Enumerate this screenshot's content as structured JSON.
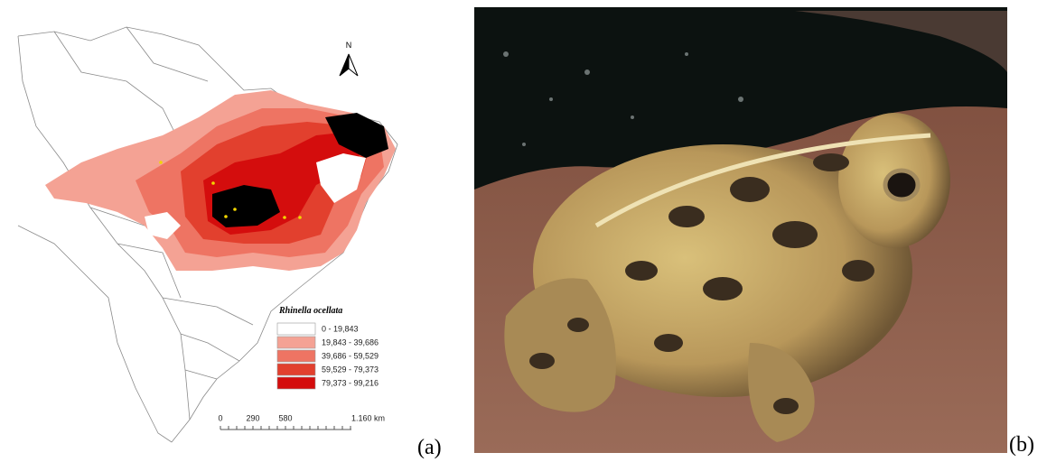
{
  "map": {
    "title": "Rhinella ocellata",
    "north": "N",
    "legend": [
      {
        "label": "0 - 19,843",
        "color": "#ffffff"
      },
      {
        "label": "19,843 - 39,686",
        "color": "#f4a294"
      },
      {
        "label": "39,686 - 59,529",
        "color": "#ee7463"
      },
      {
        "label": "59,529 - 79,373",
        "color": "#e2402e"
      },
      {
        "label": "79,373 - 99,216",
        "color": "#d40d0d"
      }
    ],
    "scale": [
      "0",
      "290",
      "580",
      "1.160 km"
    ]
  },
  "panels": [
    "(a)",
    "(b)"
  ]
}
